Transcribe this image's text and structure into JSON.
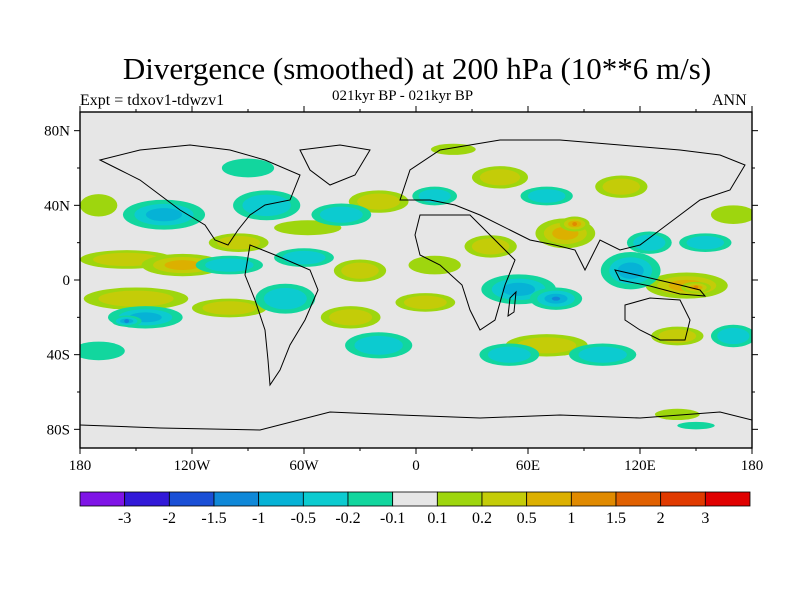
{
  "header": {
    "title": "Divergence (smoothed) at 200 hPa (10**6 m/s)",
    "left_label": "Expt = tdxov1-tdwzv1",
    "center_label": "021kyr BP - 021kyr BP",
    "right_label": "ANN"
  },
  "chart_data": {
    "type": "heatmap",
    "title": "Divergence (smoothed) at 200 hPa (10**6 m/s)",
    "subtitle": "021kyr BP - 021kyr BP",
    "xlabel": "",
    "ylabel": "",
    "xlim": [
      -180,
      180
    ],
    "ylim": [
      -90,
      90
    ],
    "x_ticks": [
      {
        "value": -180,
        "label": "180"
      },
      {
        "value": -120,
        "label": "120W"
      },
      {
        "value": -60,
        "label": "60W"
      },
      {
        "value": 0,
        "label": "0"
      },
      {
        "value": 60,
        "label": "60E"
      },
      {
        "value": 120,
        "label": "120E"
      },
      {
        "value": 180,
        "label": "180"
      }
    ],
    "y_ticks": [
      {
        "value": 80,
        "label": "80N"
      },
      {
        "value": 40,
        "label": "40N"
      },
      {
        "value": 0,
        "label": "0"
      },
      {
        "value": -40,
        "label": "40S"
      },
      {
        "value": -80,
        "label": "80S"
      }
    ],
    "levels": [
      "-3",
      "-2",
      "-1.5",
      "-1",
      "-0.5",
      "-0.2",
      "-0.1",
      "0.1",
      "0.2",
      "0.5",
      "1",
      "1.5",
      "2",
      "3"
    ],
    "colors": [
      "#7f14e6",
      "#3219d8",
      "#1a4fd6",
      "#0f88d8",
      "#06b2d6",
      "#0ccbd0",
      "#12d69e",
      "#e6e6e6",
      "#9ed60e",
      "#c4cc08",
      "#dcb000",
      "#e08a00",
      "#e06000",
      "#e03a00",
      "#e00000"
    ],
    "regions": [
      {
        "sign": "pos",
        "lon": -155,
        "lat": 11,
        "rx": 25,
        "ry": 5,
        "level": 2
      },
      {
        "sign": "pos",
        "lon": -125,
        "lat": 8,
        "rx": 22,
        "ry": 6,
        "level": 3
      },
      {
        "sign": "pos",
        "lon": -95,
        "lat": 20,
        "rx": 16,
        "ry": 5,
        "level": 2
      },
      {
        "sign": "pos",
        "lon": -58,
        "lat": 28,
        "rx": 18,
        "ry": 4,
        "level": 1
      },
      {
        "sign": "pos",
        "lon": -30,
        "lat": 5,
        "rx": 14,
        "ry": 6,
        "level": 2
      },
      {
        "sign": "pos",
        "lon": 10,
        "lat": 8,
        "rx": 14,
        "ry": 5,
        "level": 1
      },
      {
        "sign": "pos",
        "lon": 40,
        "lat": 18,
        "rx": 14,
        "ry": 6,
        "level": 2
      },
      {
        "sign": "pos",
        "lon": 80,
        "lat": 25,
        "rx": 16,
        "ry": 8,
        "level": 3
      },
      {
        "sign": "pos",
        "lon": 85,
        "lat": 30,
        "rx": 8,
        "ry": 4,
        "level": 4
      },
      {
        "sign": "pos",
        "lon": 145,
        "lat": -3,
        "rx": 22,
        "ry": 7,
        "level": 3
      },
      {
        "sign": "pos",
        "lon": 150,
        "lat": -4,
        "rx": 8,
        "ry": 3,
        "level": 4
      },
      {
        "sign": "pos",
        "lon": -150,
        "lat": -10,
        "rx": 28,
        "ry": 6,
        "level": 2
      },
      {
        "sign": "pos",
        "lon": -100,
        "lat": -15,
        "rx": 20,
        "ry": 5,
        "level": 2
      },
      {
        "sign": "pos",
        "lon": -35,
        "lat": -20,
        "rx": 16,
        "ry": 6,
        "level": 2
      },
      {
        "sign": "pos",
        "lon": 5,
        "lat": -12,
        "rx": 16,
        "ry": 5,
        "level": 2
      },
      {
        "sign": "pos",
        "lon": 70,
        "lat": -35,
        "rx": 22,
        "ry": 6,
        "level": 2
      },
      {
        "sign": "pos",
        "lon": 140,
        "lat": -30,
        "rx": 14,
        "ry": 5,
        "level": 2
      },
      {
        "sign": "pos",
        "lon": -170,
        "lat": 40,
        "rx": 10,
        "ry": 6,
        "level": 1
      },
      {
        "sign": "pos",
        "lon": -20,
        "lat": 42,
        "rx": 16,
        "ry": 6,
        "level": 2
      },
      {
        "sign": "pos",
        "lon": 45,
        "lat": 55,
        "rx": 15,
        "ry": 6,
        "level": 2
      },
      {
        "sign": "pos",
        "lon": 110,
        "lat": 50,
        "rx": 14,
        "ry": 6,
        "level": 2
      },
      {
        "sign": "pos",
        "lon": 170,
        "lat": 35,
        "rx": 12,
        "ry": 5,
        "level": 1
      },
      {
        "sign": "pos",
        "lon": 20,
        "lat": 70,
        "rx": 12,
        "ry": 3,
        "level": 1
      },
      {
        "sign": "pos",
        "lon": 140,
        "lat": -72,
        "rx": 12,
        "ry": 3,
        "level": 1
      },
      {
        "sign": "neg",
        "lon": -135,
        "lat": 35,
        "rx": 22,
        "ry": 8,
        "level": 3
      },
      {
        "sign": "neg",
        "lon": -80,
        "lat": 40,
        "rx": 18,
        "ry": 8,
        "level": 2
      },
      {
        "sign": "neg",
        "lon": -40,
        "lat": 35,
        "rx": 16,
        "ry": 6,
        "level": 2
      },
      {
        "sign": "neg",
        "lon": -100,
        "lat": 8,
        "rx": 18,
        "ry": 5,
        "level": 2
      },
      {
        "sign": "neg",
        "lon": -60,
        "lat": 12,
        "rx": 16,
        "ry": 5,
        "level": 2
      },
      {
        "sign": "neg",
        "lon": 55,
        "lat": -5,
        "rx": 20,
        "ry": 8,
        "level": 3
      },
      {
        "sign": "neg",
        "lon": 75,
        "lat": -10,
        "rx": 14,
        "ry": 6,
        "level": 4
      },
      {
        "sign": "neg",
        "lon": 115,
        "lat": 5,
        "rx": 16,
        "ry": 10,
        "level": 3
      },
      {
        "sign": "neg",
        "lon": 125,
        "lat": 20,
        "rx": 12,
        "ry": 6,
        "level": 2
      },
      {
        "sign": "neg",
        "lon": 155,
        "lat": 20,
        "rx": 14,
        "ry": 5,
        "level": 2
      },
      {
        "sign": "neg",
        "lon": -145,
        "lat": -20,
        "rx": 20,
        "ry": 6,
        "level": 3
      },
      {
        "sign": "neg",
        "lon": -155,
        "lat": -22,
        "rx": 8,
        "ry": 3,
        "level": 4
      },
      {
        "sign": "neg",
        "lon": -70,
        "lat": -10,
        "rx": 16,
        "ry": 8,
        "level": 2
      },
      {
        "sign": "neg",
        "lon": -20,
        "lat": -35,
        "rx": 18,
        "ry": 7,
        "level": 2
      },
      {
        "sign": "neg",
        "lon": 50,
        "lat": -40,
        "rx": 16,
        "ry": 6,
        "level": 2
      },
      {
        "sign": "neg",
        "lon": 100,
        "lat": -40,
        "rx": 18,
        "ry": 6,
        "level": 2
      },
      {
        "sign": "neg",
        "lon": 170,
        "lat": -30,
        "rx": 12,
        "ry": 6,
        "level": 2
      },
      {
        "sign": "neg",
        "lon": -170,
        "lat": -38,
        "rx": 14,
        "ry": 5,
        "level": 1
      },
      {
        "sign": "neg",
        "lon": 10,
        "lat": 45,
        "rx": 12,
        "ry": 5,
        "level": 2
      },
      {
        "sign": "neg",
        "lon": 70,
        "lat": 45,
        "rx": 14,
        "ry": 5,
        "level": 2
      },
      {
        "sign": "neg",
        "lon": -90,
        "lat": 60,
        "rx": 14,
        "ry": 5,
        "level": 1
      },
      {
        "sign": "neg",
        "lon": 150,
        "lat": -78,
        "rx": 10,
        "ry": 2,
        "level": 1
      }
    ]
  }
}
